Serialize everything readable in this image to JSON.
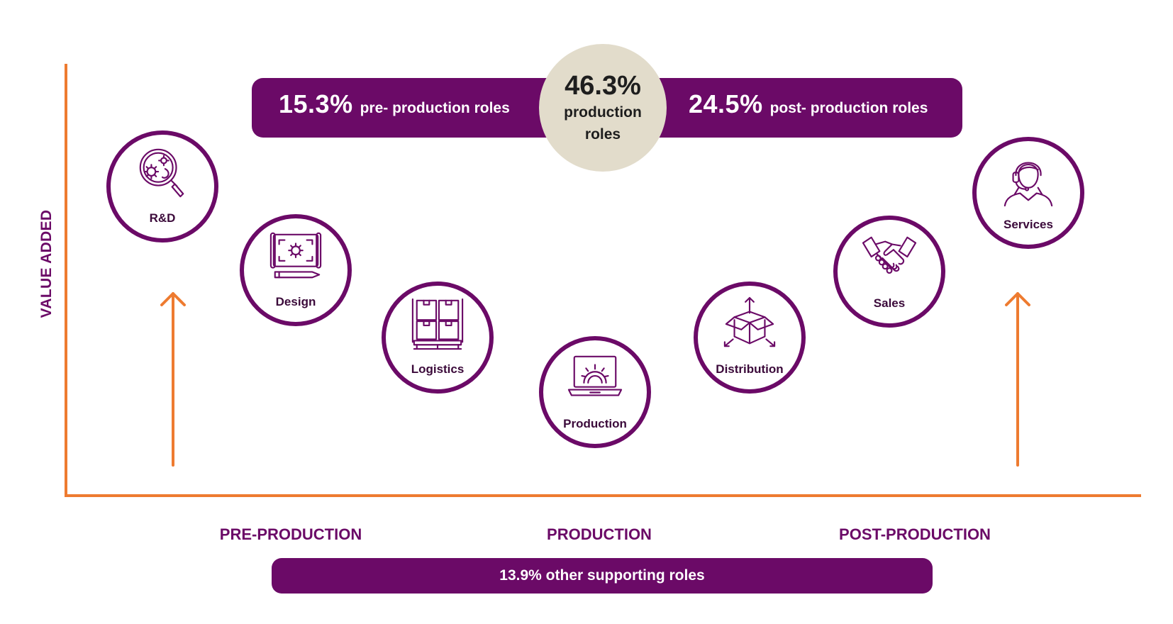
{
  "axis": {
    "y_label": "VALUE ADDED"
  },
  "summary": {
    "pre": {
      "pct": "15.3%",
      "label": "pre- production roles"
    },
    "production": {
      "pct": "46.3%",
      "label": "production roles"
    },
    "post": {
      "pct": "24.5%",
      "label": "post- production roles"
    }
  },
  "stages": [
    {
      "label": "R&D",
      "icon": "gears-magnifier-icon"
    },
    {
      "label": "Design",
      "icon": "blueprint-pencil-icon"
    },
    {
      "label": "Logistics",
      "icon": "boxes-pallet-icon"
    },
    {
      "label": "Production",
      "icon": "laptop-gear-icon"
    },
    {
      "label": "Distribution",
      "icon": "open-box-arrows-icon"
    },
    {
      "label": "Sales",
      "icon": "handshake-icon"
    },
    {
      "label": "Services",
      "icon": "headset-agent-icon"
    }
  ],
  "phases": [
    "PRE-PRODUCTION",
    "PRODUCTION",
    "POST-PRODUCTION"
  ],
  "supporting": {
    "label": "13.9% other supporting roles"
  },
  "colors": {
    "primary": "#6b0a67",
    "accent": "#ee7b30",
    "center": "#e2dccb"
  }
}
